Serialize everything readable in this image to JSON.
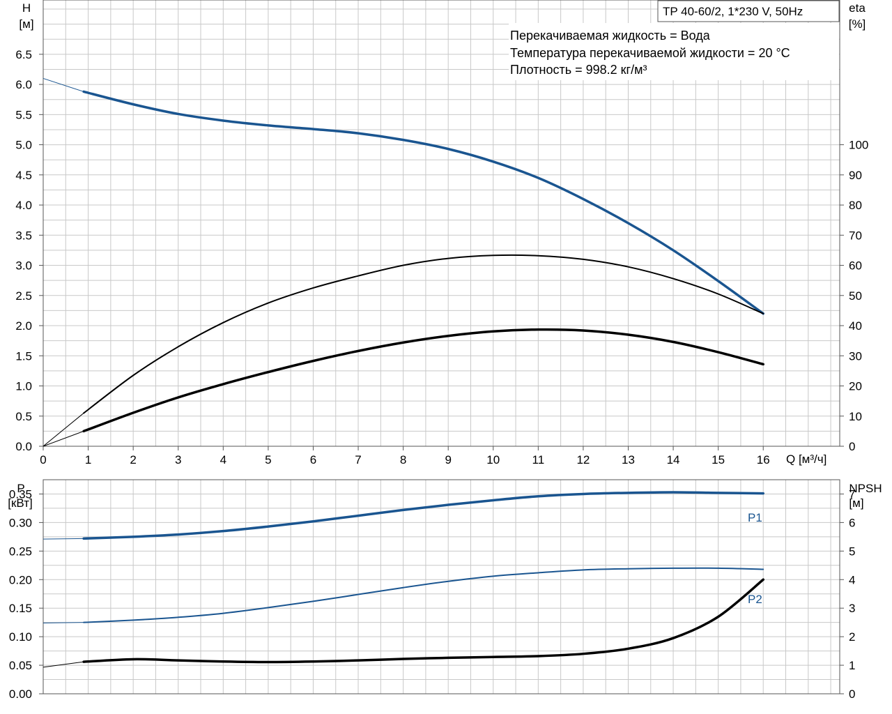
{
  "chart_data": [
    {
      "type": "line",
      "title": "TP 40-60/2, 1*230 V, 50Hz",
      "info_lines": [
        "Перекачиваемая жидкость = Вода",
        "Температура перекачиваемой жидкости = 20 °C",
        "Плотность = 998.2 кг/м³"
      ],
      "xlabel": "Q [м³/ч]",
      "ylabel_left_top": "H",
      "ylabel_left_bottom": "[м]",
      "ylabel_right_top": "eta",
      "ylabel_right_bottom": "[%]",
      "xlim": [
        0,
        17.7
      ],
      "ylim_left": [
        0,
        7.4
      ],
      "ylim_right": [
        0,
        148
      ],
      "x_ticks": [
        "0",
        "1",
        "2",
        "3",
        "4",
        "5",
        "6",
        "7",
        "8",
        "9",
        "10",
        "11",
        "12",
        "13",
        "14",
        "15",
        "16"
      ],
      "y_ticks_left": [
        "0.0",
        "0.5",
        "1.0",
        "1.5",
        "2.0",
        "2.5",
        "3.0",
        "3.5",
        "4.0",
        "4.5",
        "5.0",
        "5.5",
        "6.0",
        "6.5"
      ],
      "y_ticks_right": [
        "0",
        "10",
        "20",
        "30",
        "40",
        "50",
        "60",
        "70",
        "80",
        "90",
        "100"
      ],
      "grid": true,
      "series": [
        {
          "axis": "left",
          "color": "#1a5590",
          "role": "H",
          "extension": [
            [
              0,
              6.1
            ],
            [
              0.9,
              5.88
            ]
          ],
          "points": [
            [
              0.9,
              5.88
            ],
            [
              2,
              5.67
            ],
            [
              3,
              5.51
            ],
            [
              4,
              5.4
            ],
            [
              5,
              5.32
            ],
            [
              6,
              5.26
            ],
            [
              7,
              5.19
            ],
            [
              8,
              5.08
            ],
            [
              9,
              4.93
            ],
            [
              10,
              4.72
            ],
            [
              11,
              4.45
            ],
            [
              12,
              4.1
            ],
            [
              13,
              3.7
            ],
            [
              14,
              3.25
            ],
            [
              15,
              2.74
            ],
            [
              16,
              2.2
            ]
          ]
        },
        {
          "axis": "right",
          "color": "#000000",
          "role": "eta-thin",
          "extension": [
            [
              0,
              0
            ],
            [
              0.9,
              11
            ]
          ],
          "points": [
            [
              0.9,
              11
            ],
            [
              2,
              23.5
            ],
            [
              3,
              33
            ],
            [
              4,
              41
            ],
            [
              5,
              47.5
            ],
            [
              6,
              52.5
            ],
            [
              7,
              56.5
            ],
            [
              8,
              60
            ],
            [
              9,
              62.3
            ],
            [
              10,
              63.3
            ],
            [
              11,
              63.2
            ],
            [
              12,
              62
            ],
            [
              13,
              59.5
            ],
            [
              14,
              55.6
            ],
            [
              15,
              50.5
            ],
            [
              16,
              44
            ]
          ]
        },
        {
          "axis": "right",
          "color": "#000000",
          "role": "eta-thick",
          "extension": [
            [
              0,
              0
            ],
            [
              0.9,
              5
            ]
          ],
          "points": [
            [
              0.9,
              5
            ],
            [
              2,
              11.1
            ],
            [
              3,
              16.2
            ],
            [
              4,
              20.6
            ],
            [
              5,
              24.6
            ],
            [
              6,
              28.3
            ],
            [
              7,
              31.6
            ],
            [
              8,
              34.4
            ],
            [
              9,
              36.6
            ],
            [
              10,
              38.1
            ],
            [
              11,
              38.7
            ],
            [
              12,
              38.4
            ],
            [
              13,
              37
            ],
            [
              14,
              34.6
            ],
            [
              15,
              31.2
            ],
            [
              16,
              27.2
            ]
          ]
        }
      ]
    },
    {
      "type": "line",
      "xlim": [
        0,
        17.7
      ],
      "ylim_left": [
        0,
        0.375
      ],
      "ylim_right": [
        0,
        7.5
      ],
      "ylabel_left_top": "P",
      "ylabel_left_bottom": "[кВт]",
      "ylabel_right_top": "NPSH",
      "ylabel_right_bottom": "[м]",
      "y_ticks_left": [
        "0.00",
        "0.05",
        "0.10",
        "0.15",
        "0.20",
        "0.25",
        "0.30",
        "0.35"
      ],
      "y_ticks_right": [
        "0",
        "1",
        "2",
        "3",
        "4",
        "5",
        "6",
        "7"
      ],
      "grid": true,
      "series": [
        {
          "axis": "left",
          "name": "P1",
          "color": "#1a5590",
          "role": "P1",
          "extension": [
            [
              0,
              0.271
            ],
            [
              0.9,
              0.272
            ]
          ],
          "points": [
            [
              0.9,
              0.272
            ],
            [
              2,
              0.275
            ],
            [
              3,
              0.279
            ],
            [
              4,
              0.285
            ],
            [
              5,
              0.293
            ],
            [
              6,
              0.302
            ],
            [
              7,
              0.312
            ],
            [
              8,
              0.322
            ],
            [
              9,
              0.331
            ],
            [
              10,
              0.339
            ],
            [
              11,
              0.346
            ],
            [
              12,
              0.35
            ],
            [
              13,
              0.352
            ],
            [
              14,
              0.353
            ],
            [
              15,
              0.352
            ],
            [
              16,
              0.351
            ]
          ]
        },
        {
          "axis": "left",
          "name": "P2",
          "color": "#1a5590",
          "role": "P2",
          "extension": [
            [
              0,
              0.124
            ],
            [
              0.9,
              0.125
            ]
          ],
          "points": [
            [
              0.9,
              0.125
            ],
            [
              2,
              0.129
            ],
            [
              3,
              0.134
            ],
            [
              4,
              0.141
            ],
            [
              5,
              0.151
            ],
            [
              6,
              0.162
            ],
            [
              7,
              0.174
            ],
            [
              8,
              0.186
            ],
            [
              9,
              0.197
            ],
            [
              10,
              0.206
            ],
            [
              11,
              0.212
            ],
            [
              12,
              0.217
            ],
            [
              13,
              0.219
            ],
            [
              14,
              0.22
            ],
            [
              15,
              0.22
            ],
            [
              16,
              0.218
            ]
          ]
        },
        {
          "axis": "right",
          "color": "#000000",
          "role": "NPSH",
          "extension": [
            [
              0,
              0.93
            ],
            [
              0.9,
              1.12
            ]
          ],
          "points": [
            [
              0.9,
              1.12
            ],
            [
              2,
              1.21
            ],
            [
              3,
              1.17
            ],
            [
              4,
              1.13
            ],
            [
              5,
              1.11
            ],
            [
              6,
              1.13
            ],
            [
              7,
              1.17
            ],
            [
              8,
              1.22
            ],
            [
              9,
              1.26
            ],
            [
              10,
              1.29
            ],
            [
              11,
              1.32
            ],
            [
              12,
              1.4
            ],
            [
              13,
              1.58
            ],
            [
              14,
              1.95
            ],
            [
              15,
              2.7
            ],
            [
              16,
              4.0
            ]
          ]
        }
      ]
    }
  ]
}
